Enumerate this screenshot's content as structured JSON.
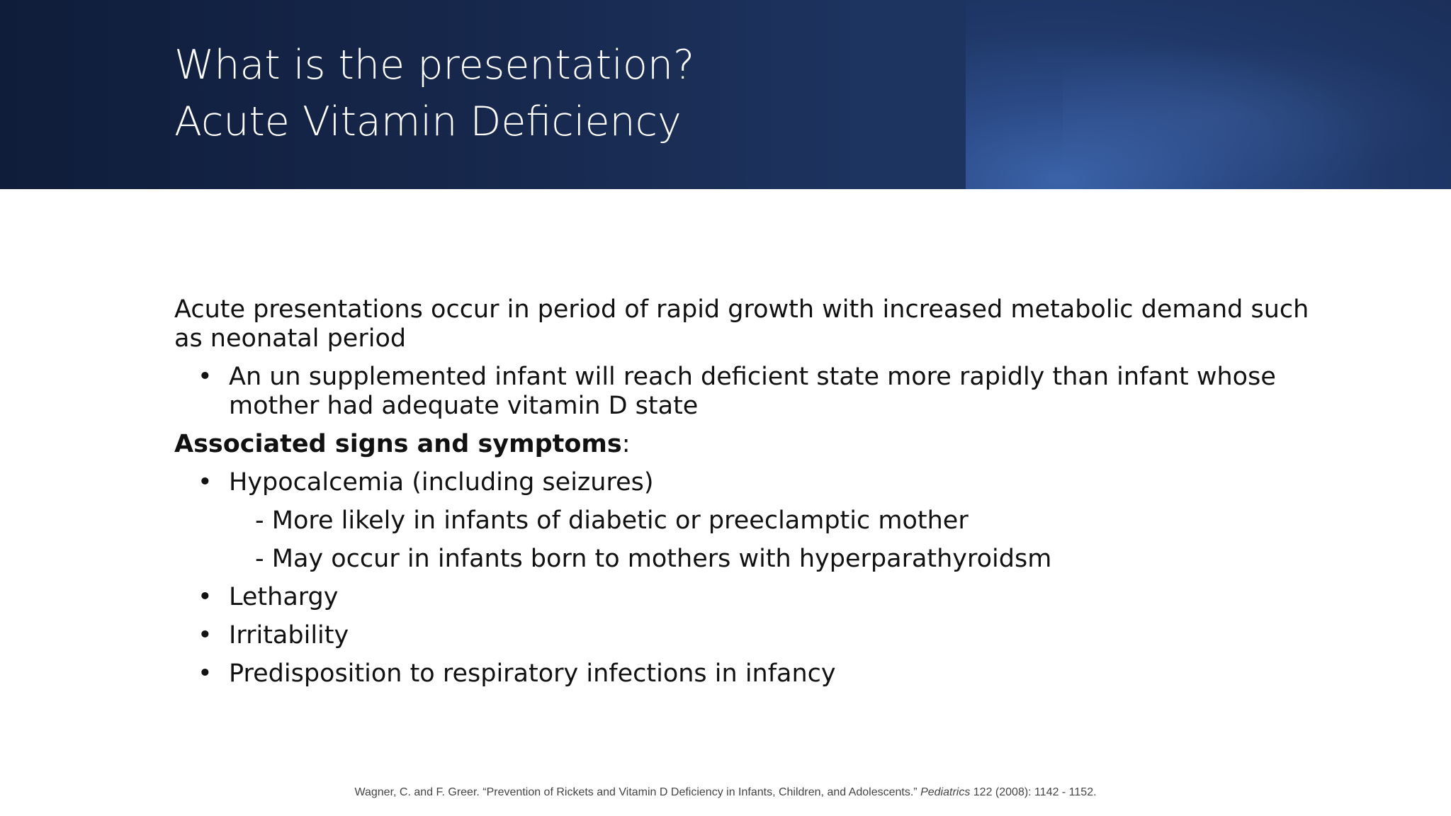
{
  "slide": {
    "title_line1": "What is the presentation?",
    "title_line2": "Acute Vitamin Deficiency",
    "intro": "Acute presentations occur in period of rapid growth with increased metabolic demand such as neonatal period",
    "intro_bullet": " An un supplemented infant will reach deficient state more rapidly than infant whose mother had adequate vitamin D state",
    "signs_heading": "Associated signs and symptoms",
    "signs_heading_colon": ":",
    "bullet_glyph": "•",
    "signs": [
      "Hypocalcemia (including seizures)",
      "Lethargy",
      "Irritability",
      "Predisposition to respiratory infections in infancy"
    ],
    "hypocalcemia_subpoints": [
      "- More likely in infants of diabetic or preeclamptic mother",
      "- May occur in infants born to mothers with hyperparathyroidsm"
    ],
    "citation": {
      "authors_title": "Wagner, C. and F. Greer. “Prevention of Rickets and Vitamin D Deficiency in Infants, Children, and Adolescents.” ",
      "journal": "Pediatrics",
      "details": " 122 (2008): 1142 - 1152."
    }
  },
  "colors": {
    "header_dark": "#0f1d3a",
    "header_accent": "#3b63a8",
    "title_text": "#ffffff",
    "body_text": "#111111",
    "citation_text": "#444444"
  }
}
